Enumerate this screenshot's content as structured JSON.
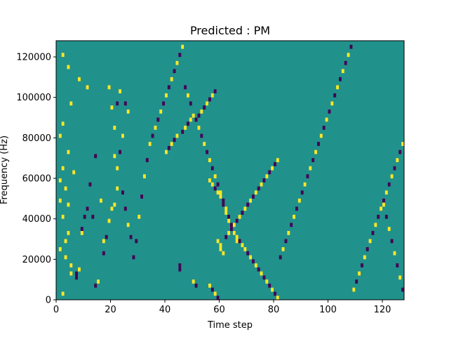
{
  "chart_data": {
    "type": "heatmap",
    "title": "Predicted : PM",
    "xlabel": "Time step",
    "ylabel": "Frequency (Hz)",
    "xlim": [
      0,
      128
    ],
    "ylim": [
      0,
      128000
    ],
    "x_ticks": [
      0,
      20,
      40,
      60,
      80,
      100,
      120
    ],
    "y_ticks": [
      0,
      20000,
      40000,
      60000,
      80000,
      100000,
      120000
    ],
    "x_tick_labels": [
      "0",
      "20",
      "40",
      "60",
      "80",
      "100",
      "120"
    ],
    "y_tick_labels": [
      "0",
      "20000",
      "40000",
      "60000",
      "80000",
      "100000",
      "120000"
    ],
    "grid": false,
    "legend": "none",
    "n_time_steps": 128,
    "n_freq_bins": 64,
    "freq_bin_hz": 2000,
    "colormap": {
      "low": "#440154",
      "mid": "#21918c",
      "high": "#fde725"
    },
    "background_value": 0,
    "cells_note": "Each cell is [time_step, frequency_bin, value], value -1=low(purple), 1=high(yellow); unlisted cells are mid (teal).",
    "cells": [
      [
        2,
        1,
        1
      ],
      [
        2,
        60,
        1
      ],
      [
        4,
        57,
        1
      ],
      [
        8,
        54,
        1
      ],
      [
        11,
        52,
        1
      ],
      [
        5,
        48,
        1
      ],
      [
        2,
        43,
        1
      ],
      [
        1,
        40,
        1
      ],
      [
        4,
        36,
        1
      ],
      [
        2,
        32,
        1
      ],
      [
        6,
        31,
        1
      ],
      [
        1,
        29,
        1
      ],
      [
        3,
        27,
        1
      ],
      [
        1,
        24,
        1
      ],
      [
        4,
        23,
        1
      ],
      [
        2,
        20,
        1
      ],
      [
        4,
        16,
        1
      ],
      [
        3,
        14,
        1
      ],
      [
        1,
        12,
        1
      ],
      [
        3,
        10,
        1
      ],
      [
        5,
        8,
        1
      ],
      [
        5,
        6,
        1
      ],
      [
        7,
        5,
        -1
      ],
      [
        7,
        6,
        -1
      ],
      [
        8,
        7,
        1
      ],
      [
        9,
        16,
        1
      ],
      [
        9,
        17,
        -1
      ],
      [
        10,
        20,
        -1
      ],
      [
        11,
        22,
        -1
      ],
      [
        12,
        28,
        -1
      ],
      [
        13,
        20,
        -1
      ],
      [
        14,
        3,
        -1
      ],
      [
        14,
        35,
        -1
      ],
      [
        15,
        4,
        1
      ],
      [
        16,
        24,
        1
      ],
      [
        17,
        11,
        -1
      ],
      [
        17,
        14,
        1
      ],
      [
        18,
        15,
        -1
      ],
      [
        19,
        19,
        1
      ],
      [
        20,
        22,
        1
      ],
      [
        21,
        23,
        1
      ],
      [
        22,
        27,
        1
      ],
      [
        21,
        35,
        1
      ],
      [
        22,
        32,
        1
      ],
      [
        23,
        36,
        -1
      ],
      [
        24,
        40,
        1
      ],
      [
        25,
        48,
        -1
      ],
      [
        26,
        46,
        1
      ],
      [
        19,
        52,
        1
      ],
      [
        20,
        47,
        1
      ],
      [
        21,
        42,
        1
      ],
      [
        22,
        48,
        -1
      ],
      [
        23,
        51,
        1
      ],
      [
        24,
        26,
        -1
      ],
      [
        25,
        22,
        -1
      ],
      [
        26,
        18,
        1
      ],
      [
        27,
        15,
        -1
      ],
      [
        28,
        10,
        -1
      ],
      [
        29,
        14,
        -1
      ],
      [
        30,
        20,
        1
      ],
      [
        31,
        25,
        -1
      ],
      [
        32,
        30,
        1
      ],
      [
        33,
        34,
        -1
      ],
      [
        34,
        38,
        1
      ],
      [
        35,
        40,
        -1
      ],
      [
        36,
        42,
        1
      ],
      [
        37,
        44,
        -1
      ],
      [
        38,
        46,
        1
      ],
      [
        39,
        48,
        -1
      ],
      [
        40,
        50,
        1
      ],
      [
        41,
        52,
        -1
      ],
      [
        42,
        54,
        1
      ],
      [
        43,
        56,
        -1
      ],
      [
        44,
        58,
        1
      ],
      [
        45,
        60,
        -1
      ],
      [
        46,
        62,
        1
      ],
      [
        47,
        52,
        -1
      ],
      [
        48,
        50,
        1
      ],
      [
        49,
        48,
        -1
      ],
      [
        50,
        45,
        1
      ],
      [
        51,
        44,
        -1
      ],
      [
        52,
        42,
        1
      ],
      [
        53,
        40,
        -1
      ],
      [
        54,
        38,
        1
      ],
      [
        55,
        36,
        -1
      ],
      [
        56,
        34,
        1
      ],
      [
        57,
        32,
        -1
      ],
      [
        58,
        30,
        1
      ],
      [
        59,
        28,
        -1
      ],
      [
        60,
        26,
        1
      ],
      [
        61,
        24,
        -1
      ],
      [
        62,
        22,
        1
      ],
      [
        63,
        20,
        -1
      ],
      [
        64,
        18,
        1
      ],
      [
        65,
        16,
        -1
      ],
      [
        66,
        14,
        1
      ],
      [
        45,
        7,
        -1
      ],
      [
        45,
        8,
        -1
      ],
      [
        50,
        4,
        1
      ],
      [
        51,
        3,
        -1
      ],
      [
        56,
        3,
        1
      ],
      [
        57,
        2,
        -1
      ],
      [
        58,
        1,
        1
      ],
      [
        59,
        0,
        -1
      ],
      [
        59,
        14,
        1
      ],
      [
        60,
        13,
        1
      ],
      [
        60,
        12,
        1
      ],
      [
        61,
        11,
        1
      ],
      [
        62,
        15,
        -1
      ],
      [
        63,
        16,
        1
      ],
      [
        64,
        17,
        -1
      ],
      [
        65,
        18,
        1
      ],
      [
        66,
        19,
        -1
      ],
      [
        67,
        20,
        1
      ],
      [
        68,
        21,
        -1
      ],
      [
        69,
        22,
        1
      ],
      [
        70,
        23,
        -1
      ],
      [
        71,
        24,
        1
      ],
      [
        72,
        25,
        -1
      ],
      [
        73,
        26,
        1
      ],
      [
        74,
        27,
        -1
      ],
      [
        75,
        28,
        1
      ],
      [
        76,
        29,
        -1
      ],
      [
        77,
        30,
        1
      ],
      [
        78,
        31,
        -1
      ],
      [
        79,
        32,
        1
      ],
      [
        80,
        33,
        -1
      ],
      [
        81,
        34,
        1
      ],
      [
        40,
        36,
        1
      ],
      [
        41,
        37,
        -1
      ],
      [
        42,
        38,
        1
      ],
      [
        43,
        39,
        -1
      ],
      [
        44,
        40,
        1
      ],
      [
        46,
        41,
        -1
      ],
      [
        47,
        42,
        1
      ],
      [
        48,
        43,
        -1
      ],
      [
        49,
        44,
        1
      ],
      [
        52,
        45,
        -1
      ],
      [
        53,
        46,
        1
      ],
      [
        54,
        47,
        -1
      ],
      [
        55,
        48,
        1
      ],
      [
        56,
        49,
        -1
      ],
      [
        57,
        50,
        1
      ],
      [
        58,
        51,
        -1
      ],
      [
        56,
        29,
        1
      ],
      [
        57,
        28,
        1
      ],
      [
        58,
        27,
        -1
      ],
      [
        59,
        26,
        1
      ],
      [
        60,
        25,
        1
      ],
      [
        61,
        23,
        -1
      ],
      [
        62,
        21,
        1
      ],
      [
        63,
        19,
        1
      ],
      [
        64,
        18,
        -1
      ],
      [
        65,
        16,
        1
      ],
      [
        66,
        15,
        1
      ],
      [
        67,
        14,
        -1
      ],
      [
        68,
        13,
        1
      ],
      [
        69,
        12,
        1
      ],
      [
        70,
        11,
        -1
      ],
      [
        71,
        10,
        1
      ],
      [
        72,
        9,
        -1
      ],
      [
        73,
        8,
        1
      ],
      [
        74,
        7,
        -1
      ],
      [
        75,
        6,
        1
      ],
      [
        76,
        5,
        -1
      ],
      [
        77,
        4,
        1
      ],
      [
        78,
        3,
        -1
      ],
      [
        79,
        2,
        1
      ],
      [
        80,
        1,
        -1
      ],
      [
        81,
        0,
        1
      ],
      [
        82,
        10,
        -1
      ],
      [
        83,
        12,
        1
      ],
      [
        84,
        14,
        -1
      ],
      [
        85,
        16,
        1
      ],
      [
        86,
        18,
        -1
      ],
      [
        87,
        20,
        1
      ],
      [
        88,
        22,
        -1
      ],
      [
        89,
        24,
        1
      ],
      [
        90,
        26,
        -1
      ],
      [
        91,
        28,
        1
      ],
      [
        92,
        30,
        -1
      ],
      [
        93,
        32,
        1
      ],
      [
        94,
        34,
        -1
      ],
      [
        95,
        36,
        1
      ],
      [
        96,
        38,
        -1
      ],
      [
        97,
        40,
        1
      ],
      [
        98,
        42,
        -1
      ],
      [
        99,
        44,
        1
      ],
      [
        100,
        46,
        -1
      ],
      [
        101,
        48,
        1
      ],
      [
        102,
        50,
        -1
      ],
      [
        103,
        52,
        1
      ],
      [
        104,
        54,
        -1
      ],
      [
        105,
        56,
        1
      ],
      [
        106,
        58,
        -1
      ],
      [
        107,
        60,
        1
      ],
      [
        108,
        62,
        -1
      ],
      [
        109,
        2,
        1
      ],
      [
        110,
        4,
        -1
      ],
      [
        111,
        6,
        1
      ],
      [
        112,
        8,
        -1
      ],
      [
        113,
        10,
        1
      ],
      [
        114,
        12,
        -1
      ],
      [
        115,
        14,
        1
      ],
      [
        116,
        16,
        -1
      ],
      [
        117,
        18,
        1
      ],
      [
        118,
        20,
        -1
      ],
      [
        119,
        22,
        1
      ],
      [
        120,
        24,
        -1
      ],
      [
        121,
        26,
        1
      ],
      [
        122,
        28,
        -1
      ],
      [
        123,
        30,
        1
      ],
      [
        124,
        32,
        -1
      ],
      [
        125,
        34,
        1
      ],
      [
        126,
        36,
        -1
      ],
      [
        127,
        38,
        1
      ],
      [
        127,
        2,
        -1
      ],
      [
        126,
        5,
        1
      ],
      [
        125,
        8,
        -1
      ],
      [
        124,
        11,
        1
      ],
      [
        123,
        14,
        -1
      ],
      [
        122,
        17,
        1
      ],
      [
        121,
        20,
        -1
      ],
      [
        120,
        23,
        1
      ]
    ]
  }
}
